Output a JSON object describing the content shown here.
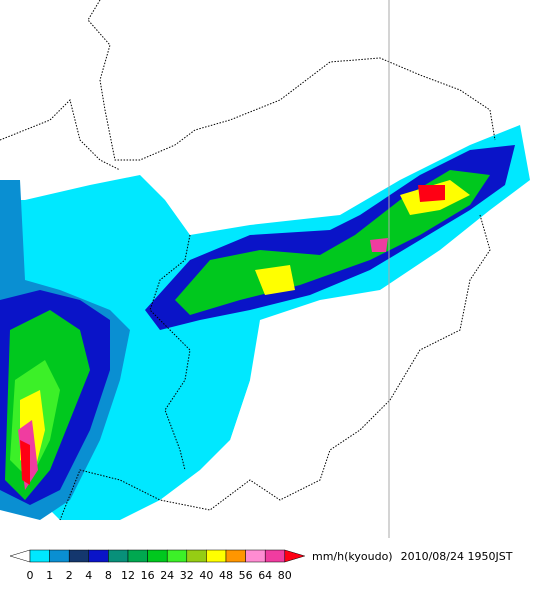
{
  "legend": {
    "ticks": [
      0,
      1,
      2,
      4,
      8,
      12,
      16,
      24,
      32,
      40,
      48,
      56,
      64,
      80
    ],
    "colors": [
      "#00e8ff",
      "#0a8fd2",
      "#14376e",
      "#0a14c8",
      "#08907a",
      "#00a850",
      "#00c81e",
      "#3cf028",
      "#96cd14",
      "#ffff00",
      "#ff9600",
      "#ff8cd2",
      "#f03ca0"
    ],
    "under_color": "#ffffff",
    "over_color": "#ff0014",
    "unit": "mm/h(kyoudo)",
    "timestamp": "2010/08/24 1950JST"
  }
}
